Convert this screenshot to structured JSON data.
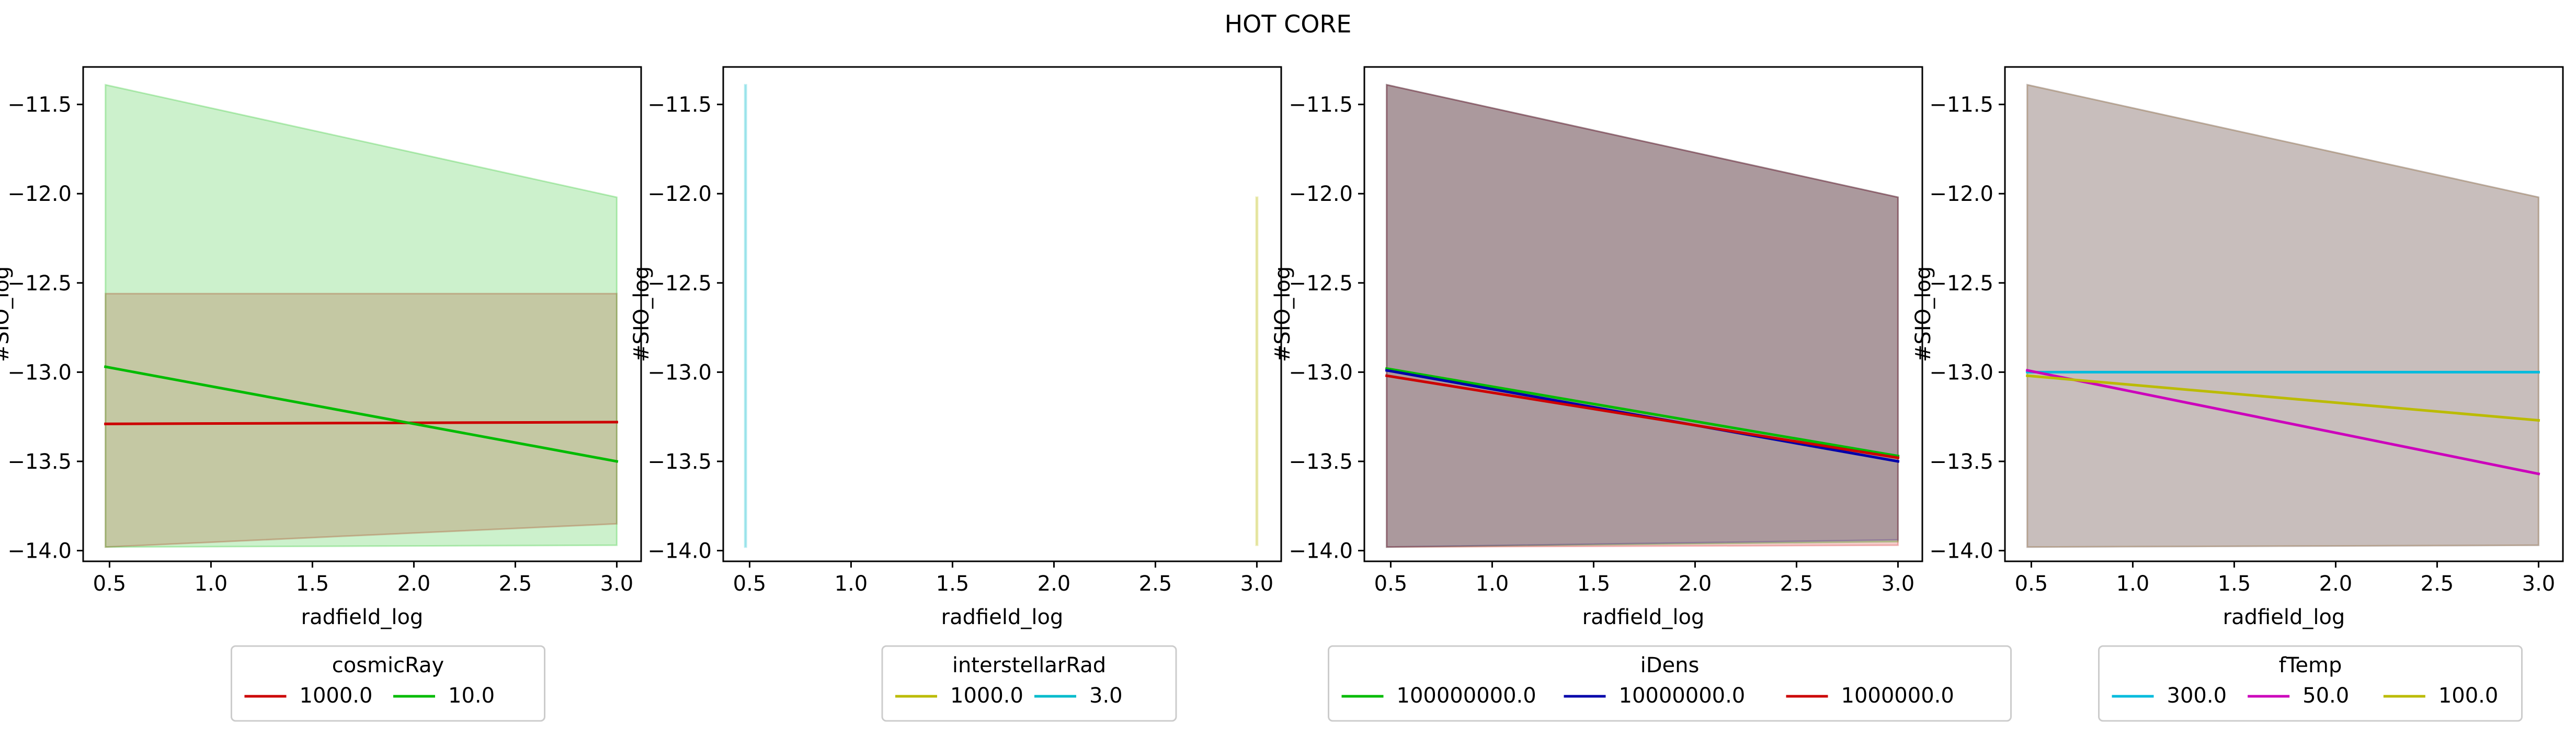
{
  "figure": {
    "title": "HOT CORE"
  },
  "chart_data": [
    {
      "type": "line",
      "xlabel": "radfield_log",
      "ylabel": "#SIO_log",
      "xlim": [
        0.37,
        3.12
      ],
      "ylim": [
        -14.06,
        -11.29
      ],
      "xticks": [
        "0.5",
        "1.0",
        "1.5",
        "2.0",
        "2.5",
        "3.0"
      ],
      "yticks": [
        "-11.5",
        "-12.0",
        "-12.5",
        "-13.0",
        "-13.5",
        "-14.0"
      ],
      "grid": false,
      "legend": {
        "title": "cosmicRay",
        "placement": "below"
      },
      "series": [
        {
          "name": "1000.0",
          "color": "#cc0000",
          "x": [
            0.48,
            3.0
          ],
          "y": [
            -13.29,
            -13.28
          ],
          "band": {
            "upper": [
              -12.56,
              -12.56
            ],
            "lower": [
              -13.98,
              -13.85
            ]
          }
        },
        {
          "name": "10.0",
          "color": "#00bb00",
          "x": [
            0.48,
            3.0
          ],
          "y": [
            -12.97,
            -13.5
          ],
          "band": {
            "upper": [
              -11.39,
              -12.02
            ],
            "lower": [
              -13.98,
              -13.97
            ]
          }
        }
      ]
    },
    {
      "type": "line",
      "xlabel": "radfield_log",
      "ylabel": "#SIO_log",
      "xlim": [
        0.37,
        3.12
      ],
      "ylim": [
        -14.06,
        -11.29
      ],
      "xticks": [
        "0.5",
        "1.0",
        "1.5",
        "2.0",
        "2.5",
        "3.0"
      ],
      "yticks": [
        "-11.5",
        "-12.0",
        "-12.5",
        "-13.0",
        "-13.5",
        "-14.0"
      ],
      "grid": false,
      "legend": {
        "title": "interstellarRad",
        "placement": "below"
      },
      "series": [
        {
          "name": "1000.0",
          "color": "#bbbb00",
          "x": [
            3.0,
            3.0
          ],
          "y": [
            -12.02,
            -13.97
          ],
          "band": {
            "upper": [
              -12.02,
              -12.02
            ],
            "lower": [
              -13.97,
              -13.97
            ]
          }
        },
        {
          "name": "3.0",
          "color": "#00bbcc",
          "x": [
            0.48,
            0.48
          ],
          "y": [
            -11.39,
            -13.98
          ],
          "band": {
            "upper": [
              -11.39,
              -11.39
            ],
            "lower": [
              -13.98,
              -13.98
            ]
          }
        }
      ]
    },
    {
      "type": "line",
      "xlabel": "radfield_log",
      "ylabel": "#SIO_log",
      "xlim": [
        0.37,
        3.12
      ],
      "ylim": [
        -14.06,
        -11.29
      ],
      "xticks": [
        "0.5",
        "1.0",
        "1.5",
        "2.0",
        "2.5",
        "3.0"
      ],
      "yticks": [
        "-11.5",
        "-12.0",
        "-12.5",
        "-13.0",
        "-13.5",
        "-14.0"
      ],
      "grid": false,
      "legend": {
        "title": "iDens",
        "placement": "below"
      },
      "series": [
        {
          "name": "100000000.0",
          "color": "#00bb00",
          "x": [
            0.48,
            3.0
          ],
          "y": [
            -12.98,
            -13.47
          ],
          "band": {
            "upper": [
              -11.39,
              -12.02
            ],
            "lower": [
              -13.98,
              -13.95
            ]
          }
        },
        {
          "name": "10000000.0",
          "color": "#0000aa",
          "x": [
            0.48,
            3.0
          ],
          "y": [
            -12.99,
            -13.5
          ],
          "band": {
            "upper": [
              -11.39,
              -12.02
            ],
            "lower": [
              -13.98,
              -13.94
            ]
          }
        },
        {
          "name": "1000000.0",
          "color": "#cc0000",
          "x": [
            0.48,
            3.0
          ],
          "y": [
            -13.02,
            -13.48
          ],
          "band": {
            "upper": [
              -11.39,
              -12.02
            ],
            "lower": [
              -13.98,
              -13.97
            ]
          }
        }
      ]
    },
    {
      "type": "line",
      "xlabel": "radfield_log",
      "ylabel": "#SIO_log",
      "xlim": [
        0.37,
        3.12
      ],
      "ylim": [
        -14.06,
        -11.29
      ],
      "xticks": [
        "0.5",
        "1.0",
        "1.5",
        "2.0",
        "2.5",
        "3.0"
      ],
      "yticks": [
        "-11.5",
        "-12.0",
        "-12.5",
        "-13.0",
        "-13.5",
        "-14.0"
      ],
      "grid": false,
      "legend": {
        "title": "fTemp",
        "placement": "below"
      },
      "series": [
        {
          "name": "300.0",
          "color": "#00bbdd",
          "x": [
            0.48,
            3.0
          ],
          "y": [
            -13.0,
            -13.0
          ],
          "band": {
            "upper": [
              -11.39,
              -12.02
            ],
            "lower": [
              -13.98,
              -13.97
            ]
          }
        },
        {
          "name": "50.0",
          "color": "#cc00bb",
          "x": [
            0.48,
            3.0
          ],
          "y": [
            -12.99,
            -13.57
          ],
          "band": {
            "upper": [
              -11.39,
              -12.02
            ],
            "lower": [
              -13.98,
              -13.97
            ]
          }
        },
        {
          "name": "100.0",
          "color": "#bbbb00",
          "x": [
            0.48,
            3.0
          ],
          "y": [
            -13.02,
            -13.27
          ],
          "band": {
            "upper": [
              -11.39,
              -12.02
            ],
            "lower": [
              -13.98,
              -13.97
            ]
          }
        }
      ]
    }
  ]
}
